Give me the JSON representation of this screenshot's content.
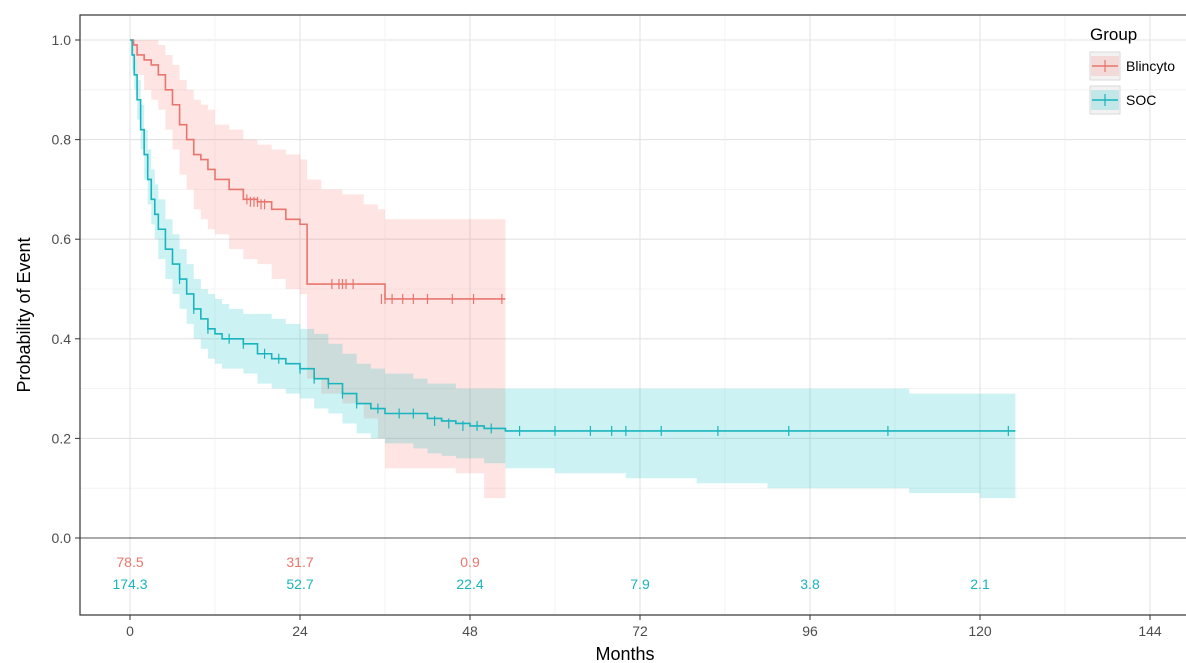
{
  "chart_data": {
    "type": "line",
    "title": "",
    "xlabel": "Months",
    "ylabel": "Probability of Event",
    "xlim": [
      -4,
      151
    ],
    "ylim": [
      0,
      1.05
    ],
    "x_ticks": [
      0,
      24,
      48,
      72,
      96,
      120,
      144
    ],
    "x_tick_labels": [
      "0",
      "24",
      "48",
      "72",
      "96",
      "120",
      "144"
    ],
    "y_ticks": [
      0.0,
      0.2,
      0.4,
      0.6,
      0.8,
      1.0
    ],
    "y_tick_labels": [
      "0.0",
      "0.2",
      "0.4",
      "0.6",
      "0.8",
      "1.0"
    ],
    "grid": true,
    "legend": {
      "title": "Group",
      "placement": "top-right",
      "entries": [
        "Blincyto",
        "SOC"
      ]
    },
    "series": [
      {
        "name": "Blincyto",
        "color": "#e8766e",
        "band_color": "#f8766d",
        "step_x": [
          0,
          0.5,
          1,
          2,
          3,
          4,
          5,
          6,
          7,
          8,
          9,
          10,
          11,
          12,
          14,
          16,
          18,
          20,
          22,
          24,
          25,
          27,
          30,
          33,
          35,
          36,
          38,
          42,
          46,
          50,
          53
        ],
        "step_y": [
          1.0,
          0.99,
          0.97,
          0.96,
          0.95,
          0.93,
          0.9,
          0.87,
          0.83,
          0.8,
          0.77,
          0.76,
          0.74,
          0.72,
          0.7,
          0.68,
          0.675,
          0.66,
          0.64,
          0.63,
          0.51,
          0.51,
          0.51,
          0.51,
          0.51,
          0.48,
          0.48,
          0.48,
          0.48,
          0.48,
          0.48
        ],
        "lower": [
          1.0,
          0.96,
          0.93,
          0.9,
          0.88,
          0.86,
          0.82,
          0.78,
          0.73,
          0.7,
          0.66,
          0.64,
          0.62,
          0.61,
          0.58,
          0.56,
          0.55,
          0.52,
          0.5,
          0.49,
          0.32,
          0.29,
          0.27,
          0.24,
          0.2,
          0.14,
          0.14,
          0.14,
          0.13,
          0.08,
          0.08
        ],
        "upper": [
          1.0,
          1.0,
          1.0,
          1.0,
          1.0,
          0.99,
          0.97,
          0.95,
          0.92,
          0.9,
          0.88,
          0.87,
          0.86,
          0.83,
          0.82,
          0.8,
          0.79,
          0.78,
          0.77,
          0.76,
          0.72,
          0.7,
          0.69,
          0.67,
          0.66,
          0.64,
          0.64,
          0.64,
          0.64,
          0.64,
          0.64
        ],
        "censor_x": [
          16.5,
          17,
          17.5,
          18,
          18.5,
          19,
          28.5,
          29.5,
          30,
          30.5,
          31.5,
          35.5,
          36,
          37,
          38.5,
          40,
          42,
          45.5,
          48.5,
          52.5
        ],
        "censor_y": [
          0.68,
          0.675,
          0.675,
          0.675,
          0.67,
          0.67,
          0.51,
          0.51,
          0.51,
          0.51,
          0.51,
          0.48,
          0.48,
          0.48,
          0.48,
          0.48,
          0.48,
          0.48,
          0.48,
          0.48
        ],
        "risk_x": [
          0,
          24,
          48
        ],
        "risk_values": [
          "78.5",
          "31.7",
          "0.9"
        ]
      },
      {
        "name": "SOC",
        "color": "#19b4bd",
        "band_color": "#00bfc4",
        "step_x": [
          0,
          0.3,
          0.6,
          1,
          1.5,
          2,
          2.5,
          3,
          3.5,
          4,
          5,
          6,
          7,
          8,
          9,
          10,
          11,
          12,
          13,
          14,
          16,
          18,
          20,
          22,
          24,
          26,
          28,
          30,
          32,
          34,
          36,
          40,
          42,
          44,
          46,
          48,
          50,
          52,
          53,
          60,
          70,
          80,
          90,
          100,
          110,
          120,
          125
        ],
        "step_y": [
          1.0,
          0.97,
          0.93,
          0.88,
          0.82,
          0.77,
          0.72,
          0.68,
          0.65,
          0.62,
          0.58,
          0.55,
          0.52,
          0.49,
          0.46,
          0.44,
          0.42,
          0.41,
          0.4,
          0.4,
          0.39,
          0.37,
          0.36,
          0.35,
          0.34,
          0.32,
          0.31,
          0.29,
          0.27,
          0.26,
          0.25,
          0.25,
          0.24,
          0.235,
          0.23,
          0.225,
          0.22,
          0.22,
          0.215,
          0.215,
          0.215,
          0.215,
          0.215,
          0.215,
          0.215,
          0.215,
          0.215
        ],
        "lower": [
          1.0,
          0.94,
          0.9,
          0.84,
          0.78,
          0.72,
          0.67,
          0.63,
          0.6,
          0.56,
          0.52,
          0.49,
          0.46,
          0.43,
          0.4,
          0.38,
          0.36,
          0.35,
          0.34,
          0.34,
          0.33,
          0.31,
          0.3,
          0.29,
          0.28,
          0.26,
          0.25,
          0.23,
          0.21,
          0.2,
          0.19,
          0.18,
          0.17,
          0.165,
          0.16,
          0.16,
          0.15,
          0.15,
          0.14,
          0.13,
          0.12,
          0.11,
          0.1,
          0.1,
          0.09,
          0.08,
          0.07
        ],
        "upper": [
          1.0,
          0.99,
          0.96,
          0.92,
          0.87,
          0.82,
          0.78,
          0.74,
          0.71,
          0.68,
          0.64,
          0.61,
          0.58,
          0.55,
          0.52,
          0.5,
          0.49,
          0.48,
          0.47,
          0.46,
          0.45,
          0.45,
          0.44,
          0.43,
          0.42,
          0.41,
          0.39,
          0.37,
          0.35,
          0.34,
          0.33,
          0.32,
          0.31,
          0.31,
          0.3,
          0.3,
          0.3,
          0.3,
          0.3,
          0.3,
          0.3,
          0.3,
          0.3,
          0.3,
          0.29,
          0.29,
          0.29
        ],
        "censor_x": [
          7,
          9,
          11,
          14,
          16,
          19,
          21,
          24,
          26,
          28,
          30,
          32,
          35,
          38,
          40,
          43,
          45,
          47,
          49,
          51,
          55,
          60,
          65,
          68,
          70,
          75,
          83,
          93,
          107,
          124
        ],
        "censor_y": [
          0.52,
          0.46,
          0.42,
          0.4,
          0.39,
          0.37,
          0.36,
          0.34,
          0.32,
          0.31,
          0.29,
          0.27,
          0.26,
          0.25,
          0.25,
          0.235,
          0.23,
          0.225,
          0.225,
          0.22,
          0.215,
          0.215,
          0.215,
          0.215,
          0.215,
          0.215,
          0.215,
          0.215,
          0.215,
          0.215
        ],
        "risk_x": [
          0,
          24,
          48,
          72,
          96,
          120
        ],
        "risk_values": [
          "174.3",
          "52.7",
          "22.4",
          "7.9",
          "3.8",
          "2.1"
        ]
      }
    ]
  }
}
